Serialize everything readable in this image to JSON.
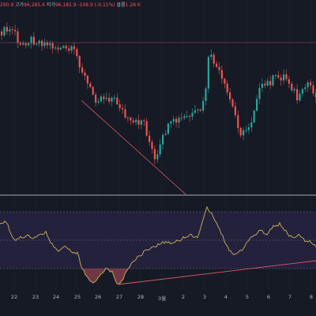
{
  "ohlc": {
    "open_value": "290.9",
    "high_label": "고가",
    "high_value": "96,285.4",
    "low_label": "저가",
    "low_value": "96,181.9",
    "change_value": "-108.9 (-0.11%)",
    "volume_label": "볼륨",
    "volume_value": "1.28 K"
  },
  "colors": {
    "background": "#161a25",
    "up_candle": "#26a69a",
    "down_candle": "#ef5350",
    "rsi_line": "#c9b458",
    "rsi_band": "#2a2446",
    "divergence_line": "#e05a6a",
    "divider": "#d8dde6"
  },
  "x_axis": {
    "labels": [
      "22",
      "23",
      "24",
      "25",
      "26",
      "27",
      "28",
      "3월",
      "2",
      "3",
      "4",
      "5",
      "6",
      "7",
      "8"
    ]
  }
}
